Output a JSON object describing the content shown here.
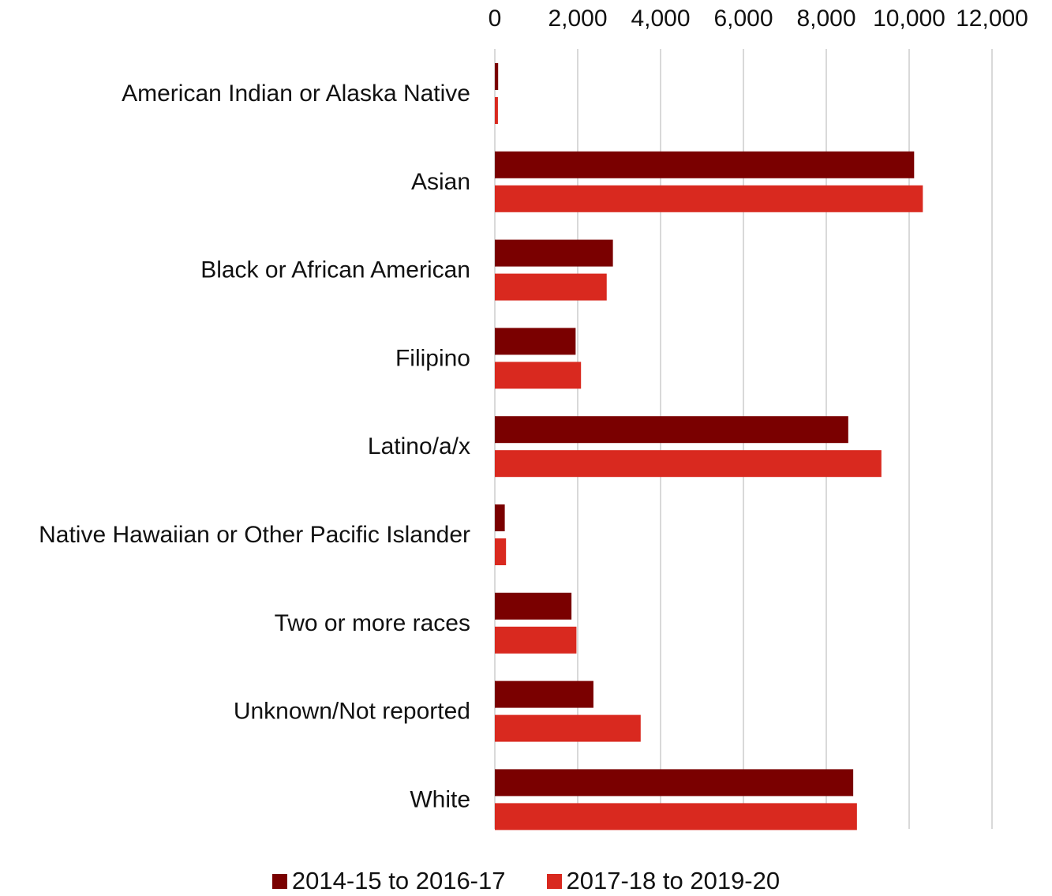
{
  "chart_data": {
    "type": "bar",
    "orientation": "horizontal",
    "title": "",
    "xlabel": "",
    "ylabel": "",
    "xlim": [
      0,
      12000
    ],
    "x_ticks": [
      "0",
      "2,000",
      "4,000",
      "6,000",
      "8,000",
      "10,000",
      "12,000"
    ],
    "x_tick_values": [
      0,
      2000,
      4000,
      6000,
      8000,
      10000,
      12000
    ],
    "x_axis_position": "top",
    "grid": true,
    "legend_position": "bottom",
    "categories": [
      "American Indian or Alaska Native",
      "Asian",
      "Black or African American",
      "Filipino",
      "Latino/a/x",
      "Native Hawaiian or Other Pacific Islander",
      "Two or more races",
      "Unknown/Not reported",
      "White"
    ],
    "series": [
      {
        "name": "2014-15 to 2016-17",
        "color": "#7a0000",
        "values": [
          80,
          10120,
          2850,
          1950,
          8530,
          240,
          1850,
          2380,
          8650
        ]
      },
      {
        "name": "2017-18 to 2019-20",
        "color": "#d9291f",
        "values": [
          75,
          10330,
          2700,
          2080,
          9330,
          270,
          1970,
          3520,
          8740
        ]
      }
    ]
  }
}
